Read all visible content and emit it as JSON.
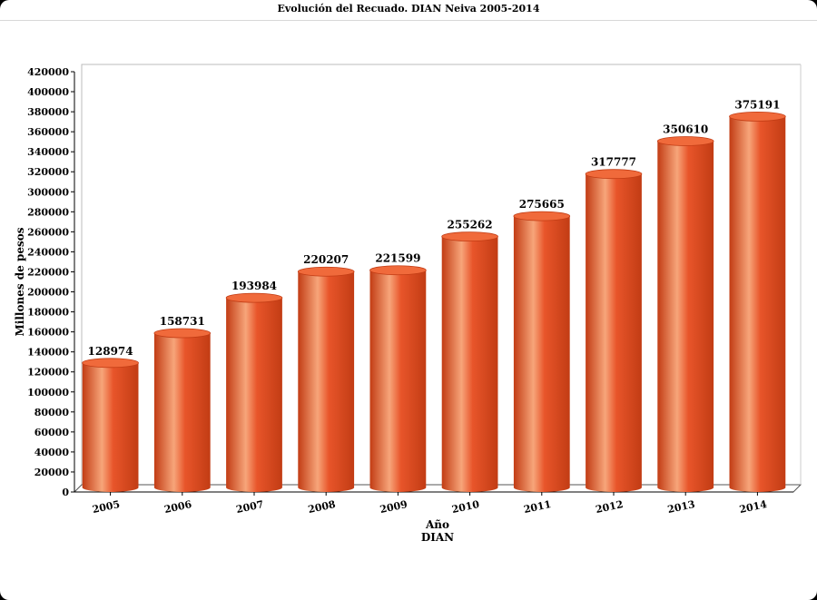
{
  "window": {
    "title": "Evolución del Recuado. DIAN Neiva 2005-2014"
  },
  "chart_data": {
    "type": "bar",
    "title": "Evolución del Recuado. DIAN Neiva 2005-2014",
    "xlabel": "Año",
    "xlabel2": "DIAN",
    "ylabel": "Millones de pesos",
    "categories": [
      "2005",
      "2006",
      "2007",
      "2008",
      "2009",
      "2010",
      "2011",
      "2012",
      "2013",
      "2014"
    ],
    "values": [
      128974,
      158731,
      193984,
      220207,
      221599,
      255262,
      275665,
      317777,
      350610,
      375191
    ],
    "ylim": [
      0,
      420000
    ],
    "ytick_step": 20000,
    "bar_style": "3d-cylinder",
    "grid": false,
    "legend": "none",
    "colors": {
      "bar": "#e8552a",
      "bar_light": "#f7a57a",
      "bar_dark": "#c23c14",
      "bar_top": "#f06a3b",
      "axis": "#000000"
    }
  }
}
